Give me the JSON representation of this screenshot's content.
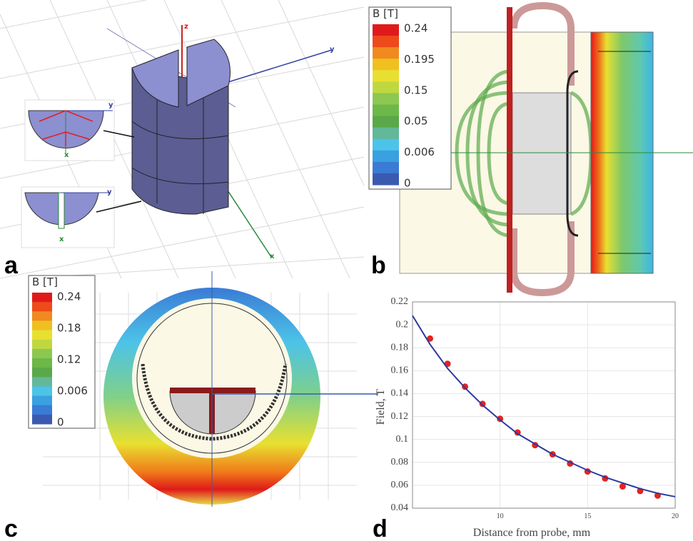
{
  "panel_a": {
    "label": "a",
    "axis_labels": [
      "z",
      "y",
      "x"
    ],
    "inset_top_labels": [
      "y",
      "x"
    ],
    "inset_bottom_labels": [
      "y",
      "x"
    ]
  },
  "panel_b": {
    "label": "b",
    "colorbar": {
      "title": "B [T]",
      "labels": [
        "0.24",
        "0.195",
        "0.15",
        "0.05",
        "0.006",
        "0"
      ]
    }
  },
  "panel_c": {
    "label": "c",
    "colorbar": {
      "title": "B [T]",
      "labels": [
        "0.24",
        "0.18",
        "0.12",
        "0.006",
        "0"
      ]
    }
  },
  "panel_d": {
    "label": "d"
  },
  "chart_data": {
    "type": "scatter-line",
    "x_label": "Distance from probe, mm",
    "y_label": "Field, T",
    "xlim": [
      5,
      20
    ],
    "ylim": [
      0.04,
      0.22
    ],
    "xticks": [
      10,
      15,
      20
    ],
    "yticks": [
      0.04,
      0.06,
      0.08,
      0.1,
      0.12,
      0.14,
      0.16,
      0.18,
      0.2,
      0.22
    ],
    "grid": true,
    "series": [
      {
        "type": "scatter",
        "color": "#e3241e",
        "x": [
          6,
          7,
          8,
          9,
          10,
          11,
          12,
          13,
          14,
          15,
          16,
          17,
          18,
          19
        ],
        "values": [
          0.188,
          0.166,
          0.146,
          0.131,
          0.118,
          0.106,
          0.095,
          0.087,
          0.079,
          0.072,
          0.066,
          0.059,
          0.055,
          0.051
        ]
      },
      {
        "type": "line",
        "color": "#2c3a9e",
        "x": [
          5,
          6,
          7,
          8,
          9,
          10,
          11,
          12,
          13,
          14,
          15,
          16,
          17,
          18,
          19,
          20
        ],
        "values": [
          0.208,
          0.183,
          0.162,
          0.145,
          0.13,
          0.117,
          0.105,
          0.096,
          0.087,
          0.08,
          0.073,
          0.067,
          0.062,
          0.057,
          0.053,
          0.05
        ]
      }
    ]
  }
}
